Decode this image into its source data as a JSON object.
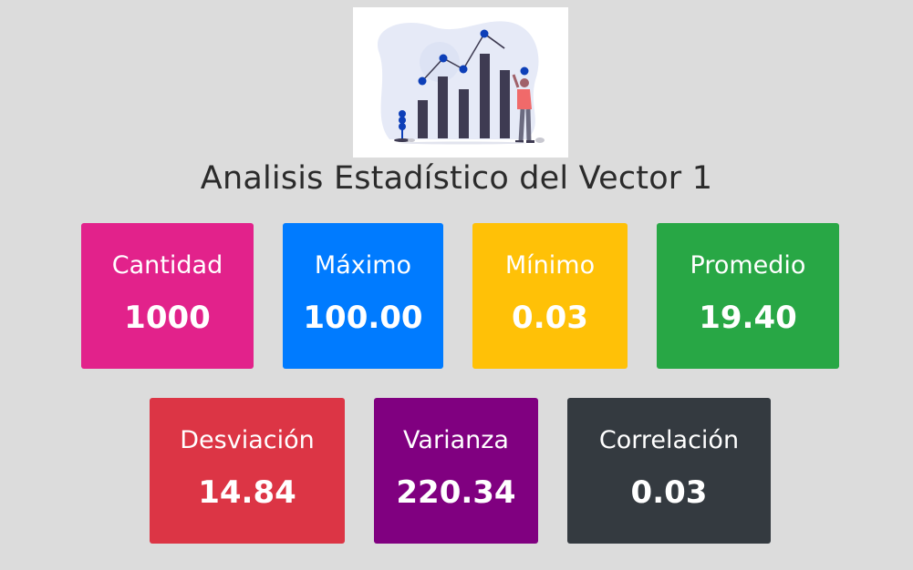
{
  "title": "Analisis Estadístico del Vector 1",
  "hero_image": {
    "icon": "statistics-chart-illustration-icon"
  },
  "cards": [
    {
      "label": "Cantidad",
      "value": "1000",
      "color": "#e2228b"
    },
    {
      "label": "Máximo",
      "value": "100.00",
      "color": "#007bff"
    },
    {
      "label": "Mínimo",
      "value": "0.03",
      "color": "#ffc107"
    },
    {
      "label": "Promedio",
      "value": "19.40",
      "color": "#28a745"
    },
    {
      "label": "Desviación",
      "value": "14.84",
      "color": "#dc3545"
    },
    {
      "label": "Varianza",
      "value": "220.34",
      "color": "#800080"
    },
    {
      "label": "Correlación",
      "value": "0.03",
      "color": "#343a40"
    }
  ]
}
